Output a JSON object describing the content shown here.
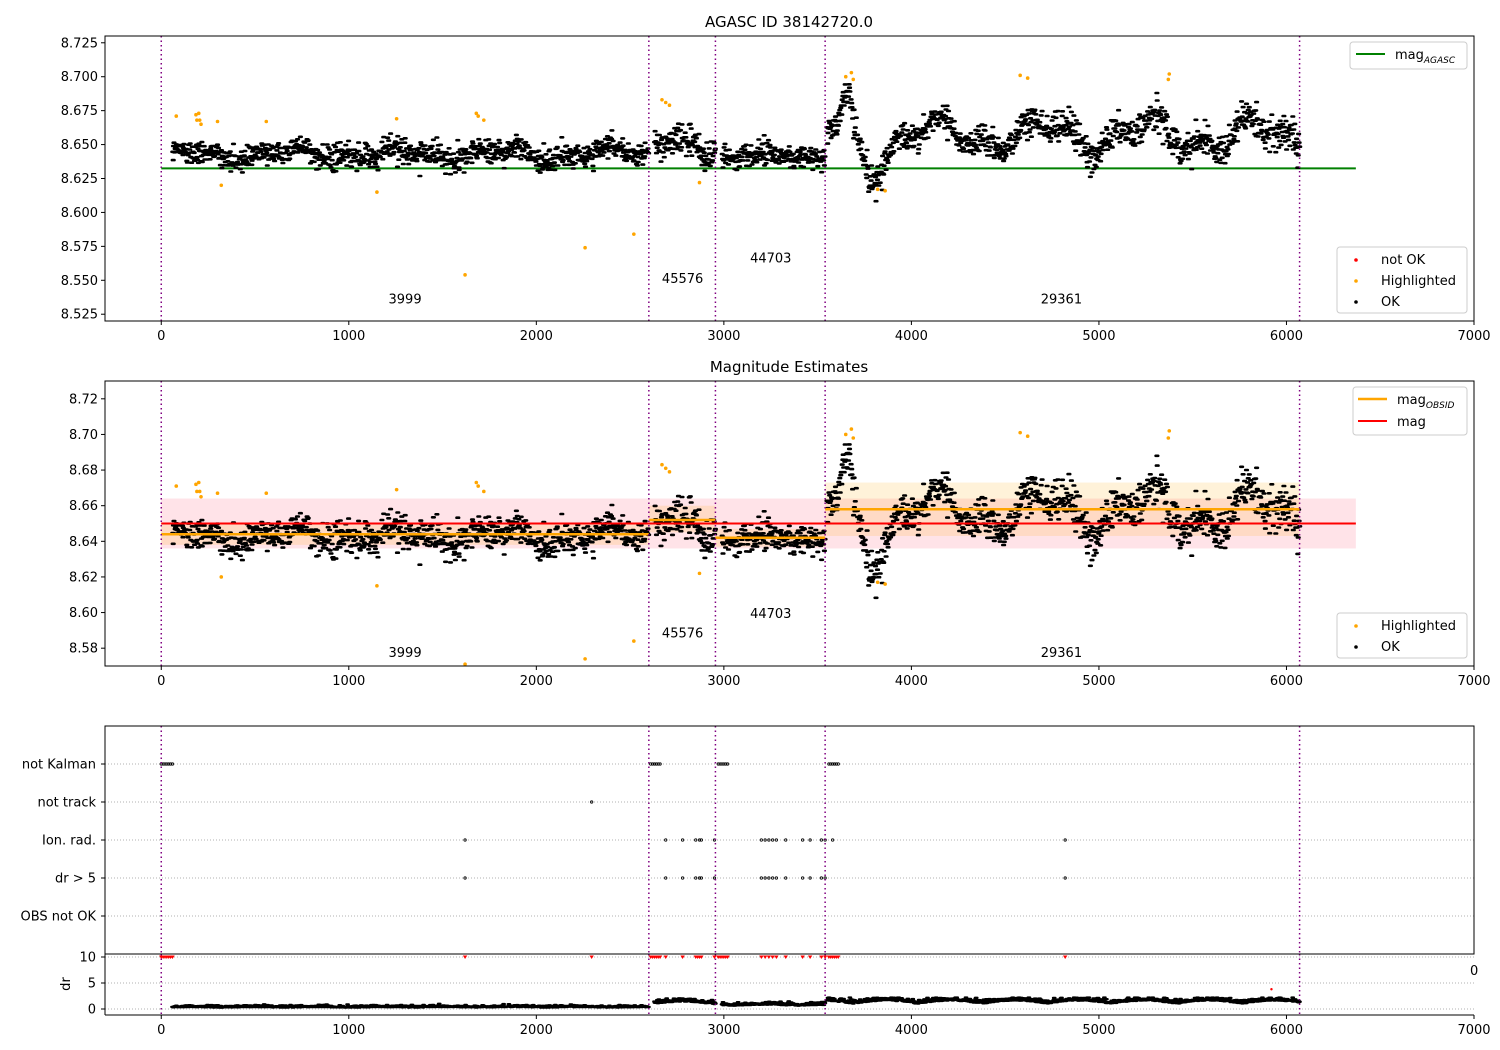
{
  "figure": {
    "background": "#ffffff"
  },
  "chart_data": [
    {
      "type": "scatter",
      "id": "agasc",
      "title": "AGASC ID 38142720.0",
      "xlim": [
        -300,
        7000
      ],
      "ylim": [
        8.52,
        8.73
      ],
      "xticks": [
        0,
        1000,
        2000,
        3000,
        4000,
        5000,
        6000,
        7000
      ],
      "xtick_labels": [
        "0",
        "1000",
        "2000",
        "3000",
        "4000",
        "5000",
        "6000",
        "7000"
      ],
      "yticks": [
        8.525,
        8.55,
        8.575,
        8.6,
        8.625,
        8.65,
        8.675,
        8.7,
        8.725
      ],
      "ytick_labels": [
        "8.525",
        "8.550",
        "8.575",
        "8.600",
        "8.625",
        "8.650",
        "8.675",
        "8.700",
        "8.725"
      ],
      "obs_boundaries": [
        0,
        2600,
        2955,
        3540,
        6070
      ],
      "obs_labels": [
        {
          "text": "3999",
          "x": 1300,
          "y": 8.533
        },
        {
          "text": "45576",
          "x": 2780,
          "y": 8.548
        },
        {
          "text": "44703",
          "x": 3250,
          "y": 8.563
        },
        {
          "text": "29361",
          "x": 4800,
          "y": 8.533
        }
      ],
      "lines": [
        {
          "name": "mag",
          "subscript": "AGASC",
          "y": 8.6325,
          "x": [
            0,
            6370
          ],
          "color": "#008000"
        }
      ],
      "segments": [
        {
          "range": [
            60,
            2600
          ],
          "mean": 8.643,
          "amp": 0.006,
          "noise": 0.0045
        },
        {
          "range": [
            2630,
            2955
          ],
          "mean": 8.648,
          "amp": 0.008,
          "noise": 0.0055
        },
        {
          "range": [
            2990,
            3540
          ],
          "mean": 8.642,
          "amp": 0.004,
          "noise": 0.0045
        },
        {
          "range": [
            3550,
            6070
          ],
          "mean": 8.657,
          "amp": 0.016,
          "noise": 0.006
        }
      ],
      "highlighted": [
        [
          80,
          8.671
        ],
        [
          185,
          8.672
        ],
        [
          190,
          8.668
        ],
        [
          200,
          8.673
        ],
        [
          205,
          8.668
        ],
        [
          212,
          8.665
        ],
        [
          300,
          8.667
        ],
        [
          320,
          8.62
        ],
        [
          560,
          8.667
        ],
        [
          1150,
          8.615
        ],
        [
          1255,
          8.669
        ],
        [
          1620,
          8.554
        ],
        [
          1680,
          8.673
        ],
        [
          1690,
          8.671
        ],
        [
          1720,
          8.668
        ],
        [
          2260,
          8.574
        ],
        [
          2520,
          8.584
        ],
        [
          2670,
          8.683
        ],
        [
          2690,
          8.681
        ],
        [
          2710,
          8.679
        ],
        [
          2870,
          8.622
        ],
        [
          3650,
          8.7
        ],
        [
          3680,
          8.703
        ],
        [
          3690,
          8.698
        ],
        [
          3820,
          8.617
        ],
        [
          3860,
          8.616
        ],
        [
          4580,
          8.701
        ],
        [
          4620,
          8.699
        ],
        [
          5370,
          8.698
        ],
        [
          5375,
          8.702
        ]
      ],
      "dip": {
        "center": 3780,
        "width": 90,
        "depth": 0.022
      },
      "peak": {
        "center": 3660,
        "width": 40,
        "height": 0.025
      },
      "legends": [
        {
          "placement": "upper-right",
          "entries": [
            {
              "label": "mag",
              "subscript": "AGASC",
              "kind": "line",
              "color": "#008000"
            }
          ]
        },
        {
          "placement": "lower-right",
          "entries": [
            {
              "label": "not OK",
              "kind": "dot",
              "color": "#ff0000"
            },
            {
              "label": "Highlighted",
              "kind": "dot",
              "color": "#ffa500"
            },
            {
              "label": "OK",
              "kind": "dot",
              "color": "#000000"
            }
          ]
        }
      ]
    },
    {
      "type": "scatter",
      "id": "estimates",
      "title": "Magnitude Estimates",
      "xlim": [
        -300,
        7000
      ],
      "ylim": [
        8.57,
        8.73
      ],
      "xticks": [
        0,
        1000,
        2000,
        3000,
        4000,
        5000,
        6000,
        7000
      ],
      "xtick_labels": [
        "0",
        "1000",
        "2000",
        "3000",
        "4000",
        "5000",
        "6000",
        "7000"
      ],
      "yticks": [
        8.58,
        8.6,
        8.62,
        8.64,
        8.66,
        8.68,
        8.7,
        8.72
      ],
      "ytick_labels": [
        "8.58",
        "8.60",
        "8.62",
        "8.64",
        "8.66",
        "8.68",
        "8.70",
        "8.72"
      ],
      "obs_boundaries": [
        0,
        2600,
        2955,
        3540,
        6070
      ],
      "obs_labels": [
        {
          "text": "3999",
          "x": 1300,
          "y": 8.575
        },
        {
          "text": "45576",
          "x": 2780,
          "y": 8.586
        },
        {
          "text": "44703",
          "x": 3250,
          "y": 8.597
        },
        {
          "text": "29361",
          "x": 4800,
          "y": 8.575
        }
      ],
      "band": {
        "y0": 8.636,
        "y1": 8.664,
        "x": [
          0,
          6370
        ],
        "color": "#ffc0cb"
      },
      "lines": [
        {
          "name": "mag",
          "y": 8.65,
          "x": [
            0,
            6370
          ],
          "color": "#ff0000"
        }
      ],
      "obsid_means": [
        {
          "x": [
            0,
            2600
          ],
          "mean": 8.644,
          "lo": 8.638,
          "hi": 8.65
        },
        {
          "x": [
            2600,
            2955
          ],
          "mean": 8.652,
          "lo": 8.645,
          "hi": 8.66
        },
        {
          "x": [
            2955,
            3540
          ],
          "mean": 8.642,
          "lo": 8.637,
          "hi": 8.647
        },
        {
          "x": [
            3540,
            6070
          ],
          "mean": 8.658,
          "lo": 8.643,
          "hi": 8.673
        }
      ],
      "obsid_color": "#ffa500",
      "segments": [
        {
          "range": [
            60,
            2600
          ],
          "mean": 8.643,
          "amp": 0.006,
          "noise": 0.0045
        },
        {
          "range": [
            2630,
            2955
          ],
          "mean": 8.648,
          "amp": 0.008,
          "noise": 0.0055
        },
        {
          "range": [
            2990,
            3540
          ],
          "mean": 8.642,
          "amp": 0.004,
          "noise": 0.0045
        },
        {
          "range": [
            3550,
            6070
          ],
          "mean": 8.657,
          "amp": 0.016,
          "noise": 0.006
        }
      ],
      "highlighted": [
        [
          80,
          8.671
        ],
        [
          185,
          8.672
        ],
        [
          190,
          8.668
        ],
        [
          200,
          8.673
        ],
        [
          205,
          8.668
        ],
        [
          212,
          8.665
        ],
        [
          300,
          8.667
        ],
        [
          320,
          8.62
        ],
        [
          560,
          8.667
        ],
        [
          1150,
          8.615
        ],
        [
          1255,
          8.669
        ],
        [
          1620,
          8.571
        ],
        [
          1680,
          8.673
        ],
        [
          1690,
          8.671
        ],
        [
          1720,
          8.668
        ],
        [
          2260,
          8.574
        ],
        [
          2520,
          8.584
        ],
        [
          2670,
          8.683
        ],
        [
          2690,
          8.681
        ],
        [
          2710,
          8.679
        ],
        [
          2870,
          8.622
        ],
        [
          3650,
          8.7
        ],
        [
          3680,
          8.703
        ],
        [
          3690,
          8.698
        ],
        [
          3820,
          8.617
        ],
        [
          3860,
          8.616
        ],
        [
          4580,
          8.701
        ],
        [
          4620,
          8.699
        ],
        [
          5370,
          8.698
        ],
        [
          5375,
          8.702
        ]
      ],
      "dip": {
        "center": 3780,
        "width": 90,
        "depth": 0.022
      },
      "peak": {
        "center": 3660,
        "width": 40,
        "height": 0.025
      },
      "legends": [
        {
          "placement": "upper-right",
          "entries": [
            {
              "label": "mag",
              "subscript": "OBSID",
              "kind": "line",
              "color": "#ffa500"
            },
            {
              "label": "mag",
              "kind": "line",
              "color": "#ff0000"
            }
          ]
        },
        {
          "placement": "lower-right",
          "entries": [
            {
              "label": "Highlighted",
              "kind": "dot",
              "color": "#ffa500"
            },
            {
              "label": "OK",
              "kind": "dot",
              "color": "#000000"
            }
          ]
        }
      ]
    },
    {
      "type": "scatter",
      "id": "flags",
      "title": "",
      "xlim": [
        -300,
        7000
      ],
      "categories": [
        "not Kalman",
        "not track",
        "Ion. rad.",
        "dr > 5",
        "OBS not OK"
      ],
      "obs_boundaries": [
        0,
        2600,
        2955,
        3540,
        6070
      ],
      "series": [
        {
          "name": "not Kalman",
          "x": [
            0,
            10,
            20,
            30,
            40,
            50,
            60,
            2610,
            2620,
            2630,
            2640,
            2650,
            2660,
            2970,
            2980,
            2990,
            3000,
            3010,
            3020,
            3560,
            3570,
            3580,
            3590,
            3600,
            3610
          ]
        },
        {
          "name": "not track",
          "x": [
            2295
          ]
        },
        {
          "name": "Ion. rad.",
          "x": [
            1620,
            2690,
            2780,
            2850,
            2870,
            2880,
            2950,
            3200,
            3220,
            3240,
            3260,
            3280,
            3330,
            3420,
            3460,
            3520,
            3540,
            3580,
            4820
          ]
        },
        {
          "name": "dr > 5",
          "x": [
            1620,
            2690,
            2780,
            2850,
            2870,
            2880,
            2950,
            3200,
            3220,
            3240,
            3260,
            3280,
            3330,
            3420,
            3460,
            3520,
            3540,
            4820
          ]
        },
        {
          "name": "OBS not OK",
          "x": []
        }
      ]
    },
    {
      "type": "scatter",
      "id": "dr",
      "title": "",
      "ylabel": "dr",
      "xlim": [
        -300,
        7000
      ],
      "ylim": [
        -0.5,
        10.5
      ],
      "xticks": [
        0,
        1000,
        2000,
        3000,
        4000,
        5000,
        6000,
        7000
      ],
      "xtick_labels": [
        "0",
        "1000",
        "2000",
        "3000",
        "4000",
        "5000",
        "6000",
        "7000"
      ],
      "yticks": [
        0,
        5,
        10
      ],
      "ytick_labels": [
        "0",
        "5",
        "10"
      ],
      "stray_tick_label": "0",
      "obs_boundaries": [
        0,
        2600,
        2955,
        3540,
        6070
      ],
      "clipped_x": [
        0,
        10,
        20,
        30,
        40,
        50,
        60,
        1620,
        2295,
        2610,
        2620,
        2630,
        2640,
        2650,
        2660,
        2690,
        2780,
        2850,
        2860,
        2870,
        2880,
        2950,
        2970,
        2980,
        2990,
        3000,
        3010,
        3020,
        3200,
        3220,
        3240,
        3260,
        3280,
        3330,
        3420,
        3460,
        3520,
        3540,
        3560,
        3570,
        3580,
        3590,
        3600,
        3610,
        4820
      ],
      "outliers": [
        [
          5920,
          3.8
        ]
      ],
      "segments": [
        {
          "range": [
            60,
            2600
          ],
          "base": 0.25,
          "amp": 0.1,
          "noise": 0.2
        },
        {
          "range": [
            2630,
            2955
          ],
          "base": 0.9,
          "amp": 0.5,
          "noise": 0.35
        },
        {
          "range": [
            2990,
            3540
          ],
          "base": 0.6,
          "amp": 0.2,
          "noise": 0.3
        },
        {
          "range": [
            3550,
            6070
          ],
          "base": 1.0,
          "amp": 0.6,
          "noise": 0.35
        }
      ]
    }
  ]
}
